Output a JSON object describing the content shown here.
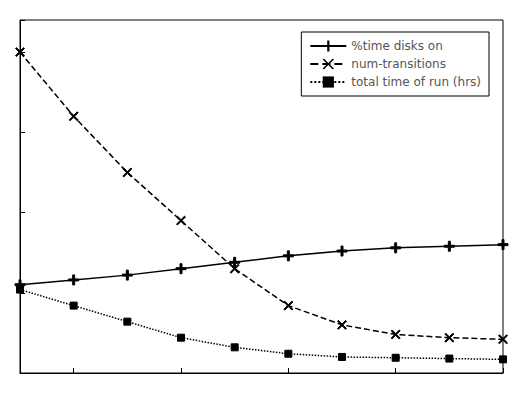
{
  "chart_data": {
    "type": "line",
    "x": [
      0.1,
      0.2,
      0.3,
      0.4,
      0.5,
      0.6,
      0.7,
      0.8,
      0.9,
      1.0
    ],
    "series": [
      {
        "name": "%time disks on",
        "color": "#000000",
        "marker": "plus",
        "line_style": "solid",
        "values": [
          55,
          58,
          61,
          65,
          69,
          73,
          76,
          78,
          79,
          80
        ]
      },
      {
        "name": "num-transitions",
        "color": "#000000",
        "marker": "x",
        "line_style": "dashed",
        "values": [
          200,
          160,
          125,
          95,
          65,
          42,
          30,
          24,
          22,
          21
        ]
      },
      {
        "name": "total time of run (hrs)",
        "color": "#000000",
        "marker": "square",
        "line_style": "dotted",
        "values": [
          52,
          42,
          32,
          22,
          16,
          12,
          10,
          9.5,
          9.0,
          8.5
        ]
      }
    ],
    "xlim": [
      0.1,
      1.0
    ],
    "xticks": [
      0.2,
      0.4,
      0.6,
      0.8,
      1.0
    ],
    "ylim": [
      0,
      220
    ],
    "yticks": [
      0,
      50,
      100,
      150,
      200
    ],
    "grid": false,
    "legend": "upper right",
    "tick_labels": false,
    "background_color": "#ffffff"
  }
}
